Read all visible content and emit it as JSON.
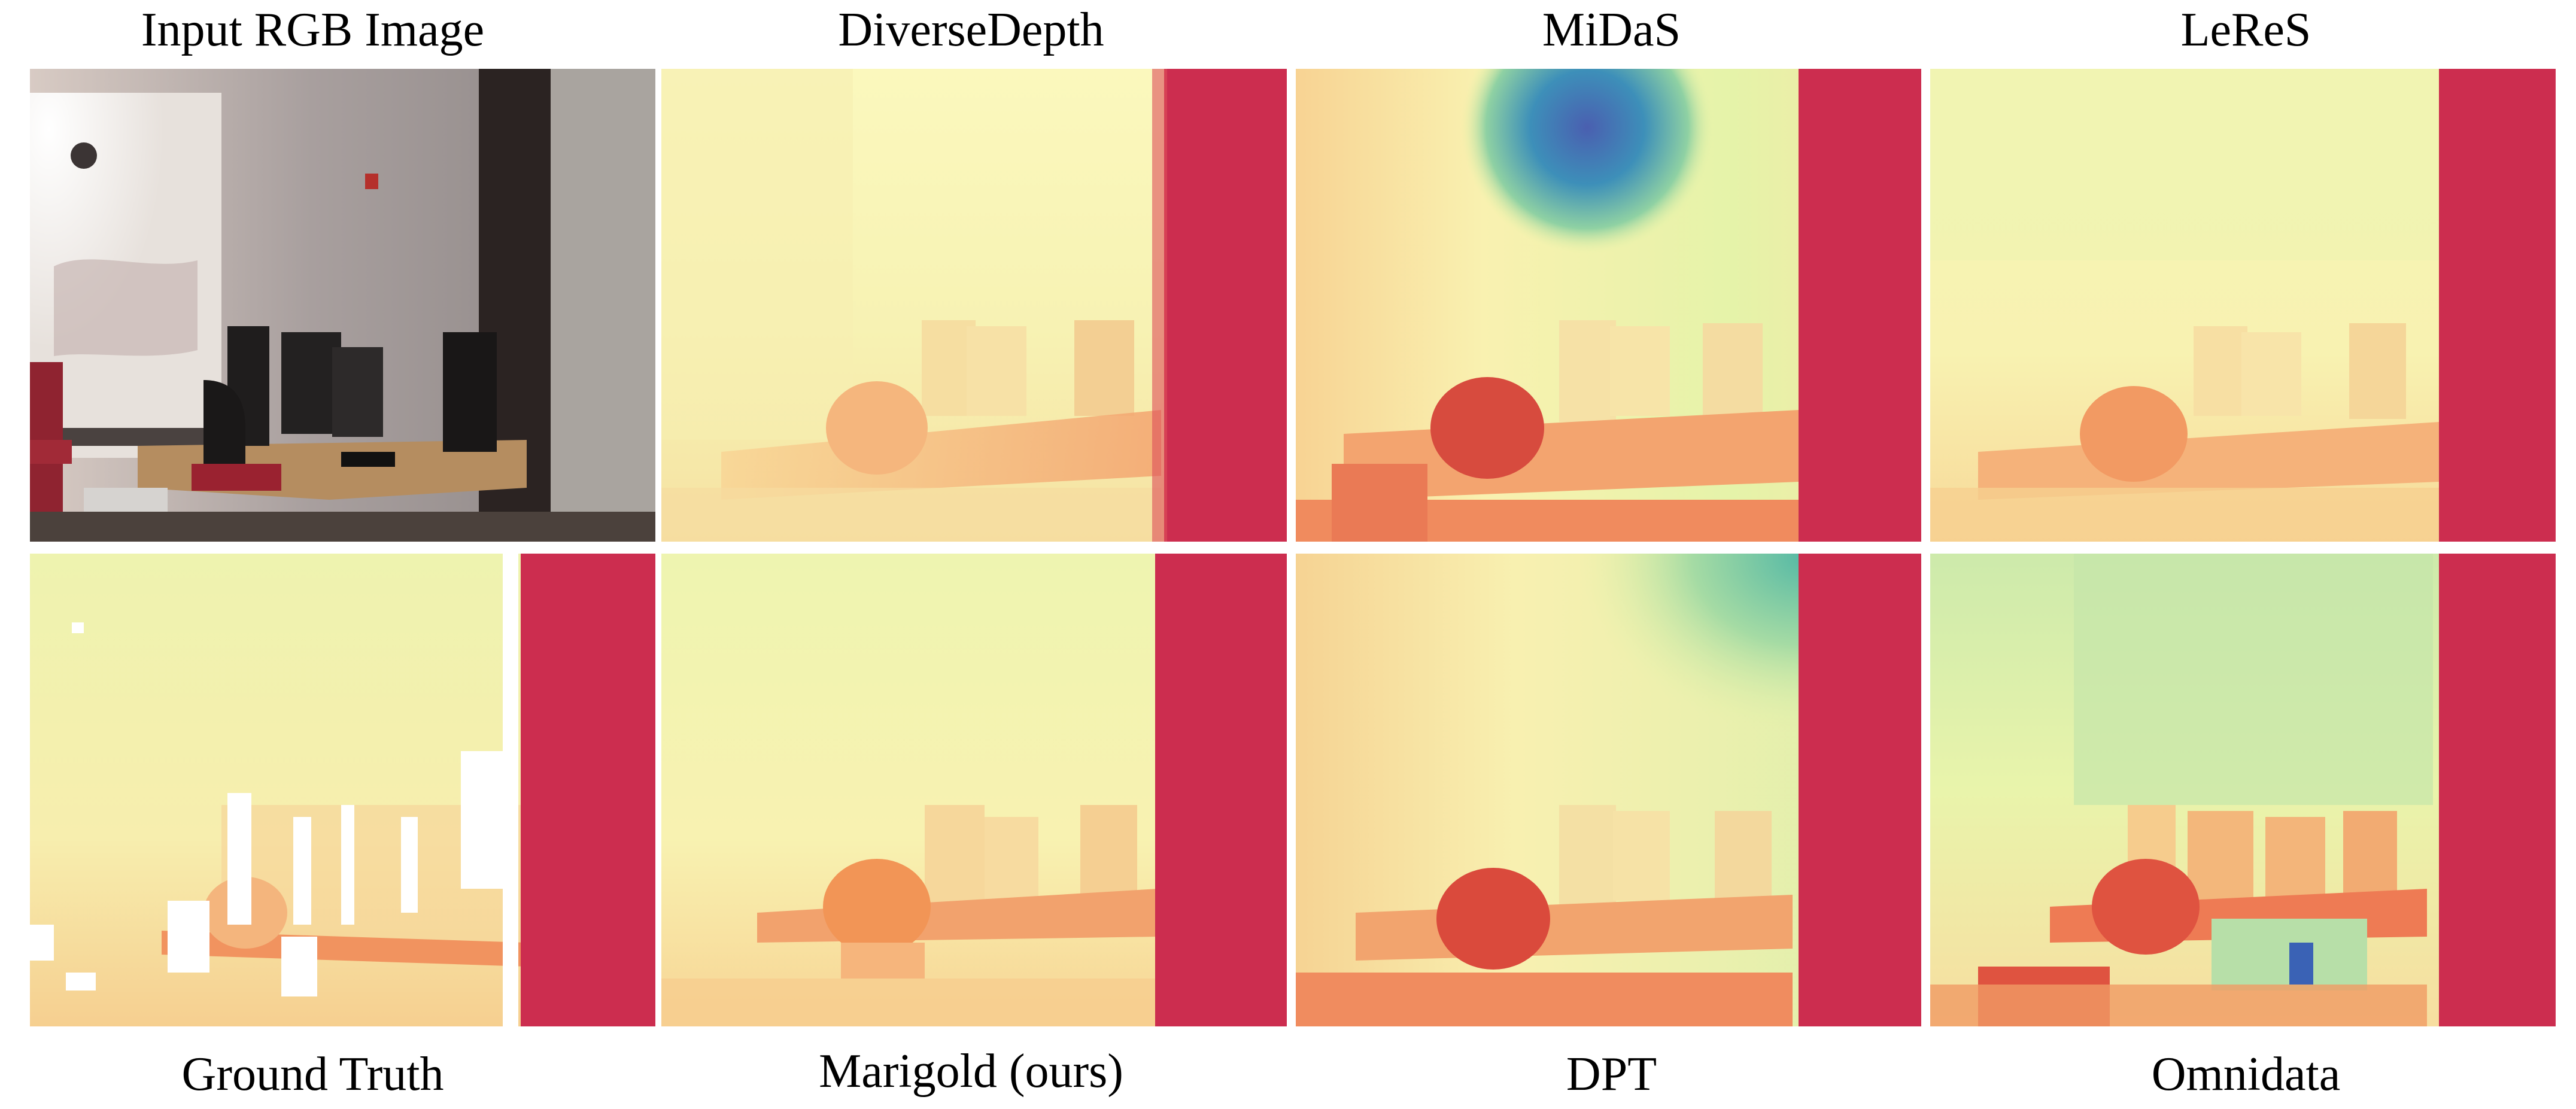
{
  "figure": {
    "top_labels": [
      "Input RGB Image",
      "DiverseDepth",
      "MiDaS",
      "LeReS"
    ],
    "bottom_labels": [
      "Ground Truth",
      "Marigold (ours)",
      "DPT",
      "Omnidata"
    ]
  },
  "colors": {
    "near": "#cc2d4f",
    "mid_warm": "#f6a56a",
    "far_light": "#f8f2b0",
    "far_green": "#d5ecab",
    "farthest_blue": "#4a5fb0",
    "background": "#ffffff"
  }
}
